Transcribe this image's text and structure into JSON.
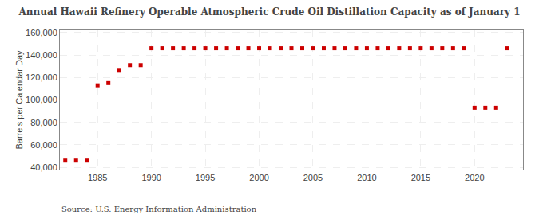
{
  "chart_data": {
    "type": "scatter",
    "title": "Annual Hawaii Refinery Operable Atmospheric Crude Oil Distillation Capacity as of January 1",
    "y_label": "Barrels per Calendar Day",
    "annotations": [
      "Source: U.S. Energy Information Administration"
    ],
    "color": "#cc0000",
    "marker": "square",
    "grid": true,
    "x": [
      1982,
      1983,
      1984,
      1985,
      1986,
      1987,
      1988,
      1989,
      1990,
      1991,
      1992,
      1993,
      1994,
      1995,
      1996,
      1997,
      1998,
      1999,
      2000,
      2001,
      2002,
      2003,
      2004,
      2005,
      2006,
      2007,
      2008,
      2009,
      2010,
      2011,
      2012,
      2013,
      2014,
      2015,
      2016,
      2017,
      2018,
      2019,
      2020,
      2021,
      2022,
      2023
    ],
    "values": [
      46000,
      46000,
      46000,
      113000,
      115000,
      126000,
      131000,
      131000,
      146000,
      146000,
      146000,
      146000,
      146000,
      146000,
      146000,
      146000,
      146000,
      146000,
      146000,
      146000,
      146000,
      146000,
      146000,
      146000,
      146000,
      146000,
      146000,
      146000,
      146000,
      146000,
      146000,
      146000,
      146000,
      146000,
      146000,
      146000,
      146000,
      146000,
      93000,
      93000,
      93000,
      146000
    ],
    "xlim": [
      1981.5,
      2024.5
    ],
    "ylim": [
      38000,
      162000
    ],
    "xticks": [
      1985,
      1990,
      1995,
      2000,
      2005,
      2010,
      2015,
      2020
    ],
    "yticks": [
      {
        "value": 40000,
        "label": "40,000"
      },
      {
        "value": 60000,
        "label": "60,000"
      },
      {
        "value": 80000,
        "label": "80,000"
      },
      {
        "value": 100000,
        "label": "100,000"
      },
      {
        "value": 120000,
        "label": "120,000"
      },
      {
        "value": 140000,
        "label": "140,000"
      },
      {
        "value": 160000,
        "label": "160,000"
      }
    ]
  }
}
